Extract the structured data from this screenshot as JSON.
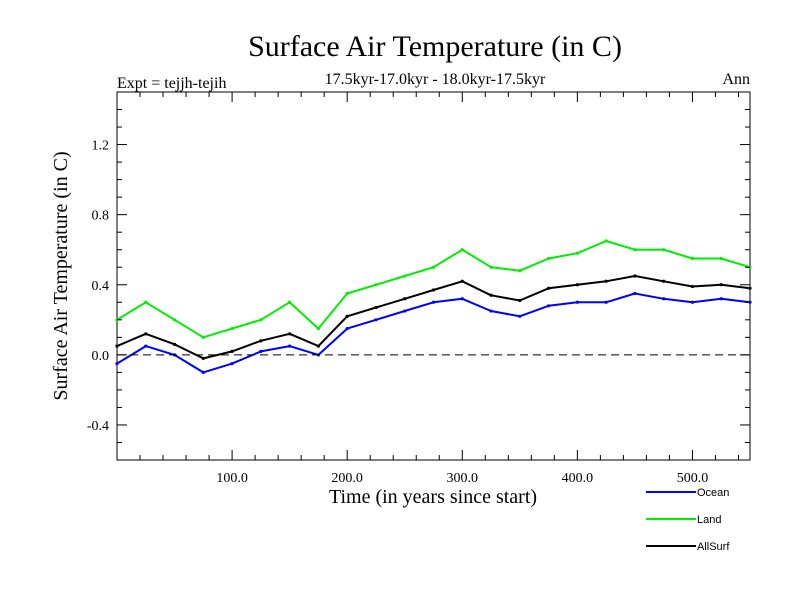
{
  "chart_data": {
    "type": "line",
    "title": "Surface Air Temperature (in C)",
    "subtitle": "17.5kyr-17.0kyr - 18.0kyr-17.5kyr",
    "left_label": "Expt = tejjh-tejih",
    "right_label": "Ann",
    "xlabel": "Time (in years since start)",
    "ylabel": "Surface Air Temperature (in C)",
    "xlim": [
      0,
      550
    ],
    "ylim": [
      -0.6,
      1.5
    ],
    "x_ticks": [
      100,
      200,
      300,
      400,
      500
    ],
    "x_tick_labels": [
      "100.0",
      "200.0",
      "300.0",
      "400.0",
      "500.0"
    ],
    "y_ticks": [
      -0.4,
      0.0,
      0.4,
      0.8,
      1.2
    ],
    "y_tick_labels": [
      "-0.4",
      "0.0",
      "0.4",
      "0.8",
      "1.2"
    ],
    "reference_line": 0.0,
    "legend_position": "bottom-right",
    "x": [
      0,
      25,
      50,
      75,
      100,
      125,
      150,
      175,
      200,
      225,
      250,
      275,
      300,
      325,
      350,
      375,
      400,
      425,
      450,
      475,
      500,
      525,
      550
    ],
    "series": [
      {
        "name": "Ocean",
        "color": "#0000ff",
        "values": [
          -0.05,
          0.05,
          0.0,
          -0.1,
          -0.05,
          0.02,
          0.05,
          0.0,
          0.15,
          0.2,
          0.25,
          0.3,
          0.32,
          0.25,
          0.22,
          0.28,
          0.3,
          0.3,
          0.35,
          0.32,
          0.3,
          0.32,
          0.3
        ]
      },
      {
        "name": "Land",
        "color": "#00ee00",
        "values": [
          0.2,
          0.3,
          0.2,
          0.1,
          0.15,
          0.2,
          0.3,
          0.15,
          0.35,
          0.4,
          0.45,
          0.5,
          0.6,
          0.5,
          0.48,
          0.55,
          0.58,
          0.65,
          0.6,
          0.6,
          0.55,
          0.55,
          0.5
        ]
      },
      {
        "name": "AllSurf",
        "color": "#000000",
        "values": [
          0.05,
          0.12,
          0.06,
          -0.02,
          0.02,
          0.08,
          0.12,
          0.05,
          0.22,
          0.27,
          0.32,
          0.37,
          0.42,
          0.34,
          0.31,
          0.38,
          0.4,
          0.42,
          0.45,
          0.42,
          0.39,
          0.4,
          0.38
        ]
      }
    ]
  }
}
